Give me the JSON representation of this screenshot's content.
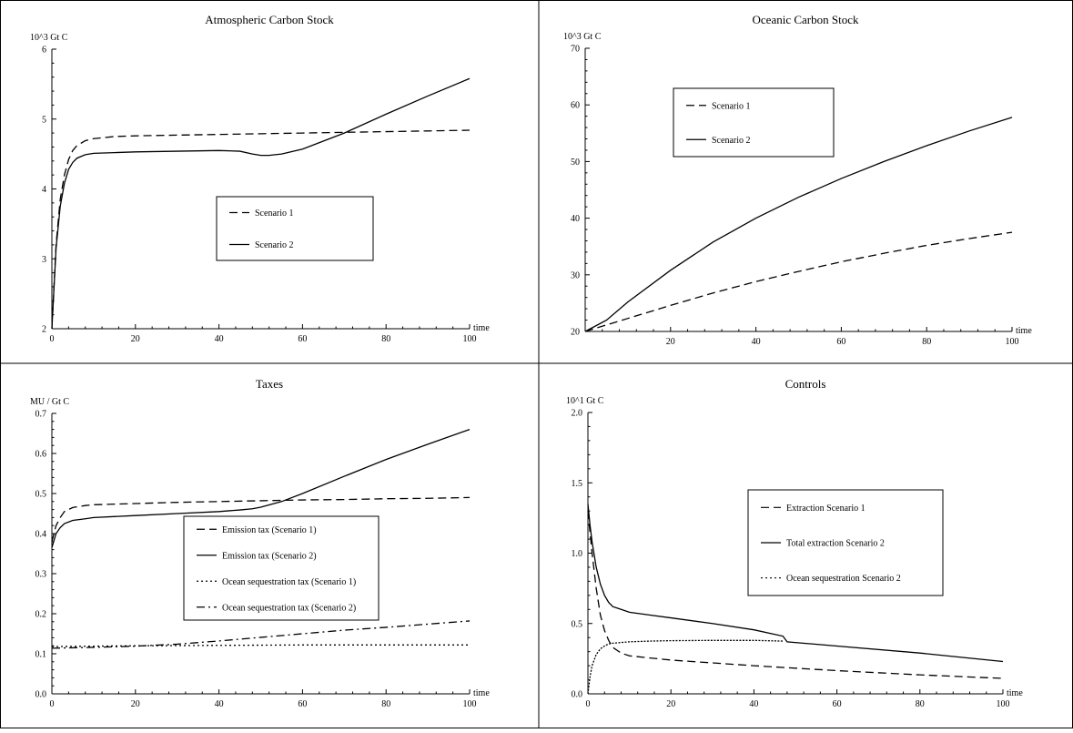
{
  "chart_data": [
    {
      "type": "line",
      "title": "Atmospheric Carbon Stock",
      "ylabel": "10^3  Gt C",
      "xlabel": "time",
      "xlim": [
        0,
        100
      ],
      "ylim": [
        2,
        6
      ],
      "xticks": [
        0,
        20,
        40,
        60,
        80,
        100
      ],
      "yticks": [
        2,
        3,
        4,
        5,
        6
      ],
      "legend_position": "center-right",
      "series": [
        {
          "name": "Scenario 1",
          "dash": "dashed",
          "x": [
            0,
            1,
            2,
            3,
            4,
            5,
            6,
            8,
            10,
            15,
            20,
            30,
            40,
            50,
            60,
            70,
            80,
            90,
            100
          ],
          "y": [
            2.0,
            3.2,
            3.85,
            4.2,
            4.42,
            4.55,
            4.62,
            4.69,
            4.72,
            4.75,
            4.76,
            4.77,
            4.78,
            4.79,
            4.8,
            4.81,
            4.82,
            4.83,
            4.84
          ]
        },
        {
          "name": "Scenario 2",
          "dash": "solid",
          "x": [
            0,
            1,
            2,
            3,
            4,
            5,
            6,
            8,
            10,
            15,
            20,
            30,
            40,
            45,
            48,
            50,
            52,
            55,
            60,
            70,
            80,
            90,
            100
          ],
          "y": [
            2.0,
            3.15,
            3.75,
            4.08,
            4.28,
            4.38,
            4.44,
            4.49,
            4.51,
            4.52,
            4.53,
            4.54,
            4.55,
            4.54,
            4.5,
            4.48,
            4.48,
            4.5,
            4.57,
            4.8,
            5.07,
            5.33,
            5.58
          ]
        }
      ]
    },
    {
      "type": "line",
      "title": "Oceanic Carbon Stock",
      "ylabel": "10^3  Gt C",
      "xlabel": "time",
      "xlim": [
        0,
        100
      ],
      "ylim": [
        20,
        70
      ],
      "xticks": [
        20,
        40,
        60,
        80,
        100
      ],
      "yticks": [
        20,
        30,
        40,
        50,
        60,
        70
      ],
      "legend_position": "top-left",
      "series": [
        {
          "name": "Scenario 1",
          "dash": "dashed",
          "x": [
            0,
            10,
            20,
            30,
            40,
            50,
            60,
            70,
            80,
            90,
            100
          ],
          "y": [
            20,
            22.3,
            24.6,
            26.8,
            28.8,
            30.6,
            32.3,
            33.8,
            35.2,
            36.4,
            37.5
          ]
        },
        {
          "name": "Scenario 2",
          "dash": "solid",
          "x": [
            0,
            5,
            10,
            20,
            30,
            40,
            50,
            60,
            70,
            80,
            90,
            100
          ],
          "y": [
            20,
            22,
            25.2,
            30.8,
            35.8,
            40.0,
            43.7,
            47.0,
            50.0,
            52.8,
            55.4,
            57.8
          ]
        }
      ]
    },
    {
      "type": "line",
      "title": "Taxes",
      "ylabel": "MU / Gt C",
      "xlabel": "time",
      "xlim": [
        0,
        100
      ],
      "ylim": [
        0.0,
        0.7
      ],
      "xticks": [
        0,
        20,
        40,
        60,
        80,
        100
      ],
      "yticks": [
        0.0,
        0.1,
        0.2,
        0.3,
        0.4,
        0.5,
        0.6,
        0.7
      ],
      "ytick_labels": [
        "0.0",
        "0.1",
        "0.2",
        "0.3",
        "0.4",
        "0.5",
        "0.6",
        "0.7"
      ],
      "legend_position": "center",
      "series": [
        {
          "name": "Emission tax (Scenario 1)",
          "dash": "dashed",
          "x": [
            0,
            1,
            2,
            3,
            5,
            8,
            10,
            20,
            30,
            40,
            50,
            60,
            70,
            80,
            90,
            100
          ],
          "y": [
            0.38,
            0.42,
            0.44,
            0.455,
            0.465,
            0.47,
            0.472,
            0.475,
            0.478,
            0.48,
            0.482,
            0.484,
            0.485,
            0.487,
            0.488,
            0.49
          ]
        },
        {
          "name": "Emission tax (Scenario 2)",
          "dash": "solid",
          "x": [
            0,
            1,
            2,
            3,
            5,
            8,
            10,
            20,
            30,
            40,
            45,
            48,
            50,
            55,
            60,
            70,
            80,
            90,
            100
          ],
          "y": [
            0.365,
            0.4,
            0.415,
            0.425,
            0.433,
            0.437,
            0.44,
            0.445,
            0.45,
            0.455,
            0.459,
            0.462,
            0.466,
            0.48,
            0.5,
            0.543,
            0.585,
            0.623,
            0.66
          ]
        },
        {
          "name": "Ocean sequestration tax (Scenario 1)",
          "dash": "dotted",
          "x": [
            0,
            20,
            40,
            60,
            80,
            100
          ],
          "y": [
            0.118,
            0.12,
            0.121,
            0.122,
            0.122,
            0.122
          ]
        },
        {
          "name": "Ocean sequestration tax (Scenario 2)",
          "dash": "dashdot",
          "x": [
            0,
            10,
            20,
            30,
            40,
            50,
            60,
            70,
            80,
            90,
            100
          ],
          "y": [
            0.114,
            0.116,
            0.119,
            0.124,
            0.132,
            0.141,
            0.15,
            0.159,
            0.166,
            0.174,
            0.182
          ]
        }
      ]
    },
    {
      "type": "line",
      "title": "Controls",
      "ylabel": "10^1  Gt C",
      "xlabel": "time",
      "xlim": [
        0,
        100
      ],
      "ylim": [
        0.0,
        2.0
      ],
      "xticks": [
        0,
        20,
        40,
        60,
        80,
        100
      ],
      "yticks": [
        0.0,
        0.5,
        1.0,
        1.5,
        2.0
      ],
      "ytick_labels": [
        "0.0",
        "0.5",
        "1.0",
        "1.5",
        "2.0"
      ],
      "legend_position": "top-right",
      "series": [
        {
          "name": "Extraction Scenario 1",
          "dash": "dashed",
          "x": [
            0,
            0.5,
            1,
            2,
            3,
            4,
            5,
            6,
            8,
            10,
            15,
            20,
            40,
            60,
            80,
            100
          ],
          "y": [
            1.3,
            1.15,
            1.0,
            0.75,
            0.56,
            0.45,
            0.38,
            0.33,
            0.29,
            0.27,
            0.255,
            0.24,
            0.2,
            0.165,
            0.135,
            0.11
          ]
        },
        {
          "name": "Total extraction Scenario 2",
          "dash": "solid",
          "x": [
            0,
            0.5,
            1,
            2,
            3,
            4,
            5,
            6,
            8,
            10,
            15,
            20,
            30,
            40,
            47,
            48,
            60,
            80,
            100
          ],
          "y": [
            1.35,
            1.2,
            1.08,
            0.9,
            0.78,
            0.7,
            0.65,
            0.62,
            0.6,
            0.58,
            0.56,
            0.54,
            0.5,
            0.455,
            0.41,
            0.37,
            0.34,
            0.29,
            0.23
          ]
        },
        {
          "name": "Ocean sequestration Scenario 2",
          "dash": "dotted",
          "x": [
            0,
            0.5,
            1,
            2,
            3,
            4,
            5,
            6,
            8,
            10,
            15,
            20,
            30,
            40,
            47
          ],
          "y": [
            0.0,
            0.12,
            0.2,
            0.28,
            0.32,
            0.34,
            0.355,
            0.36,
            0.365,
            0.37,
            0.375,
            0.378,
            0.38,
            0.38,
            0.375
          ]
        }
      ]
    }
  ]
}
